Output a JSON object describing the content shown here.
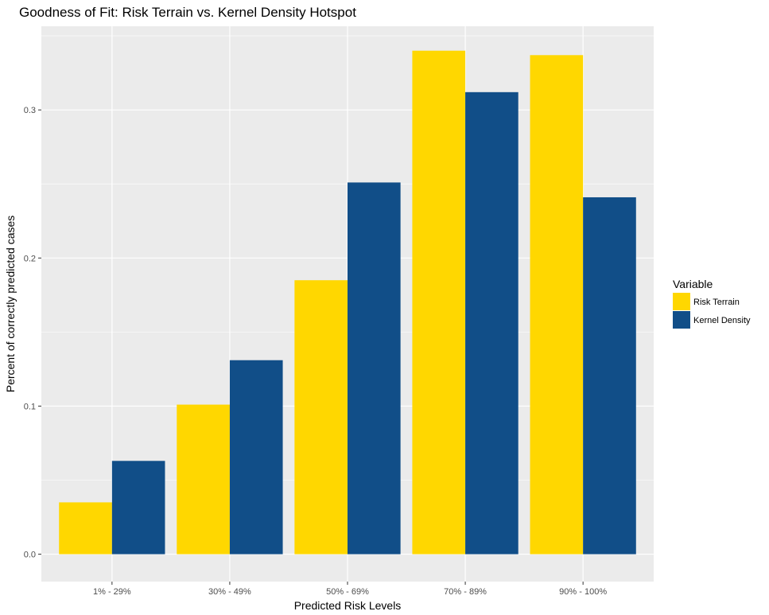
{
  "chart_data": {
    "type": "bar",
    "title": "Goodness of Fit: Risk Terrain vs. Kernel Density Hotspot",
    "xlabel": "Predicted Risk Levels",
    "ylabel": "Percent of correctly predicted cases",
    "categories": [
      "1% - 29%",
      "30% - 49%",
      "50% - 69%",
      "70% - 89%",
      "90% - 100%"
    ],
    "series": [
      {
        "name": "Risk Terrain",
        "color": "#FFD700",
        "values": [
          0.035,
          0.101,
          0.185,
          0.34,
          0.337
        ]
      },
      {
        "name": "Kernel Density",
        "color": "#114E88",
        "values": [
          0.063,
          0.131,
          0.251,
          0.312,
          0.241
        ]
      }
    ],
    "ylim": [
      -0.0185,
      0.3565
    ],
    "yticks": [
      0.0,
      0.1,
      0.2,
      0.3
    ],
    "ytick_labels": [
      "0.0",
      "0.1",
      "0.2",
      "0.3"
    ],
    "legend_title": "Variable",
    "legend_position": "right",
    "grid": true,
    "panel_background": "#EBEBEB",
    "grid_color": "#FFFFFF"
  }
}
